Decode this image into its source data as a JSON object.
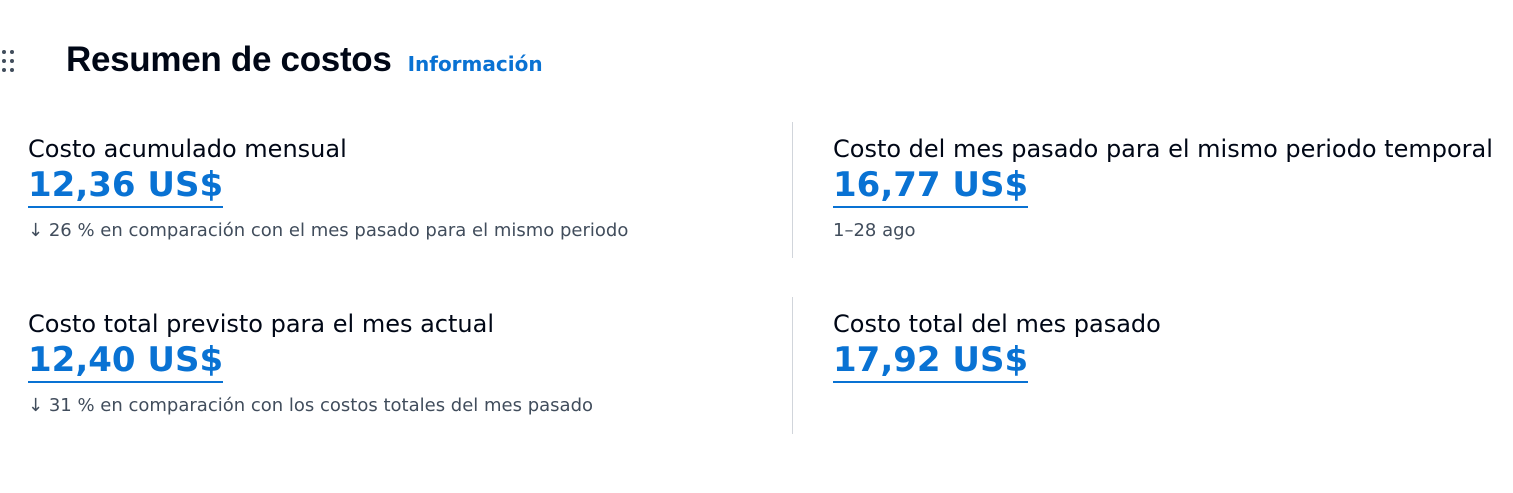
{
  "header": {
    "title": "Resumen de costos",
    "info_link": "Información"
  },
  "metrics": [
    {
      "label": "Costo acumulado mensual",
      "value": "12,36 US$",
      "sub_icon": "arrow-down-icon",
      "sub_arrow": "↓",
      "sub": "26 % en comparación con el mes pasado para el mismo periodo"
    },
    {
      "label": "Costo del mes pasado para el mismo periodo temporal",
      "value": "16,77 US$",
      "sub": "1–28 ago"
    },
    {
      "label": "Costo total previsto para el mes actual",
      "value": "12,40 US$",
      "sub_icon": "arrow-down-icon",
      "sub_arrow": "↓",
      "sub": "31 % en comparación con los costos totales del mes pasado"
    },
    {
      "label": "Costo total del mes pasado",
      "value": "17,92 US$"
    }
  ],
  "colors": {
    "link": "#0972d3",
    "text": "#000716",
    "secondary": "#414d5c"
  }
}
